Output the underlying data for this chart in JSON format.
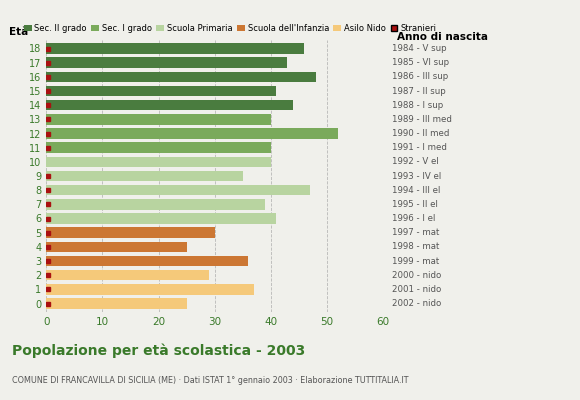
{
  "ages": [
    18,
    17,
    16,
    15,
    14,
    13,
    12,
    11,
    10,
    9,
    8,
    7,
    6,
    5,
    4,
    3,
    2,
    1,
    0
  ],
  "values": [
    46,
    43,
    48,
    41,
    44,
    40,
    52,
    40,
    40,
    35,
    47,
    39,
    41,
    30,
    25,
    36,
    29,
    37,
    25
  ],
  "stranieri": [
    1,
    1,
    1,
    1,
    1,
    1,
    1,
    1,
    0,
    1,
    1,
    2,
    1,
    1,
    1,
    1,
    1,
    1,
    1
  ],
  "bar_colors": [
    "#4a7c3f",
    "#4a7c3f",
    "#4a7c3f",
    "#4a7c3f",
    "#4a7c3f",
    "#7aaa5b",
    "#7aaa5b",
    "#7aaa5b",
    "#b8d4a0",
    "#b8d4a0",
    "#b8d4a0",
    "#b8d4a0",
    "#b8d4a0",
    "#cc7733",
    "#cc7733",
    "#cc7733",
    "#f5c97a",
    "#f5c97a",
    "#f5c97a"
  ],
  "right_labels": [
    "1984 - V sup",
    "1985 - VI sup",
    "1986 - III sup",
    "1987 - II sup",
    "1988 - I sup",
    "1989 - III med",
    "1990 - II med",
    "1991 - I med",
    "1992 - V el",
    "1993 - IV el",
    "1994 - III el",
    "1995 - II el",
    "1996 - I el",
    "1997 - mat",
    "1998 - mat",
    "1999 - mat",
    "2000 - nido",
    "2001 - nido",
    "2002 - nido"
  ],
  "legend_labels": [
    "Sec. II grado",
    "Sec. I grado",
    "Scuola Primaria",
    "Scuola dell'Infanzia",
    "Asilo Nido",
    "Stranieri"
  ],
  "legend_colors": [
    "#4a7c3f",
    "#7aaa5b",
    "#b8d4a0",
    "#cc7733",
    "#f5c97a",
    "#aa1111"
  ],
  "stranieri_color": "#aa1111",
  "title": "Popolazione per età scolastica - 2003",
  "subtitle": "COMUNE DI FRANCAVILLA DI SICILIA (ME) · Dati ISTAT 1° gennaio 2003 · Elaborazione TUTTITALIA.IT",
  "xlabel_left": "Età",
  "xlabel_right": "Anno di nascita",
  "xlim": [
    0,
    60
  ],
  "xticks": [
    0,
    10,
    20,
    30,
    40,
    50,
    60
  ],
  "background_color": "#f0f0eb",
  "bar_height": 0.75,
  "grid_color": "#aaaaaa",
  "title_color": "#3a7a2a",
  "subtitle_color": "#555555",
  "tick_color": "#3a7a2a"
}
